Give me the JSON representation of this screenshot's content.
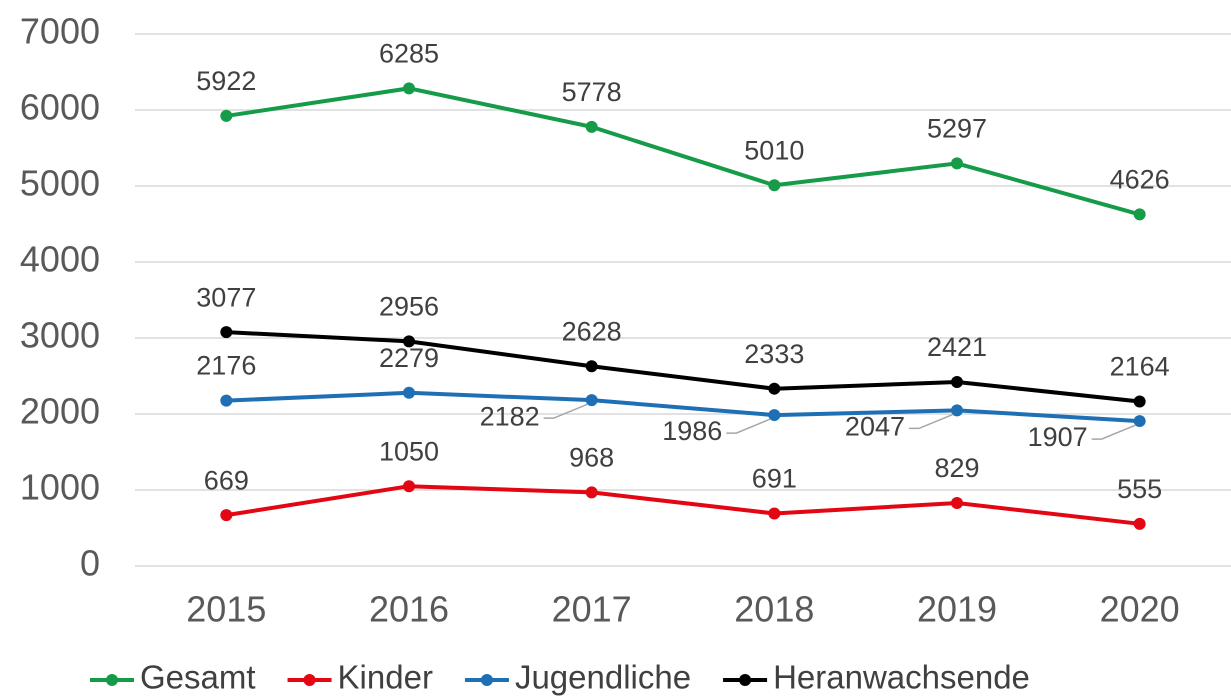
{
  "chart_data": {
    "type": "line",
    "categories": [
      "2015",
      "2016",
      "2017",
      "2018",
      "2019",
      "2020"
    ],
    "series": [
      {
        "name": "Gesamt",
        "color": "#169b48",
        "values": [
          5922,
          6285,
          5778,
          5010,
          5297,
          4626
        ]
      },
      {
        "name": "Kinder",
        "color": "#e30613",
        "values": [
          669,
          1050,
          968,
          691,
          829,
          555
        ]
      },
      {
        "name": "Jugendliche",
        "color": "#1f6fb5",
        "values": [
          2176,
          2279,
          2182,
          1986,
          2047,
          1907
        ]
      },
      {
        "name": "Heranwachsende",
        "color": "#000000",
        "values": [
          3077,
          2956,
          2628,
          2333,
          2421,
          2164
        ]
      }
    ],
    "ylim": [
      0,
      7000
    ],
    "yticks": [
      0,
      1000,
      2000,
      3000,
      4000,
      5000,
      6000,
      7000
    ],
    "grid": true,
    "legend": "bottom"
  }
}
